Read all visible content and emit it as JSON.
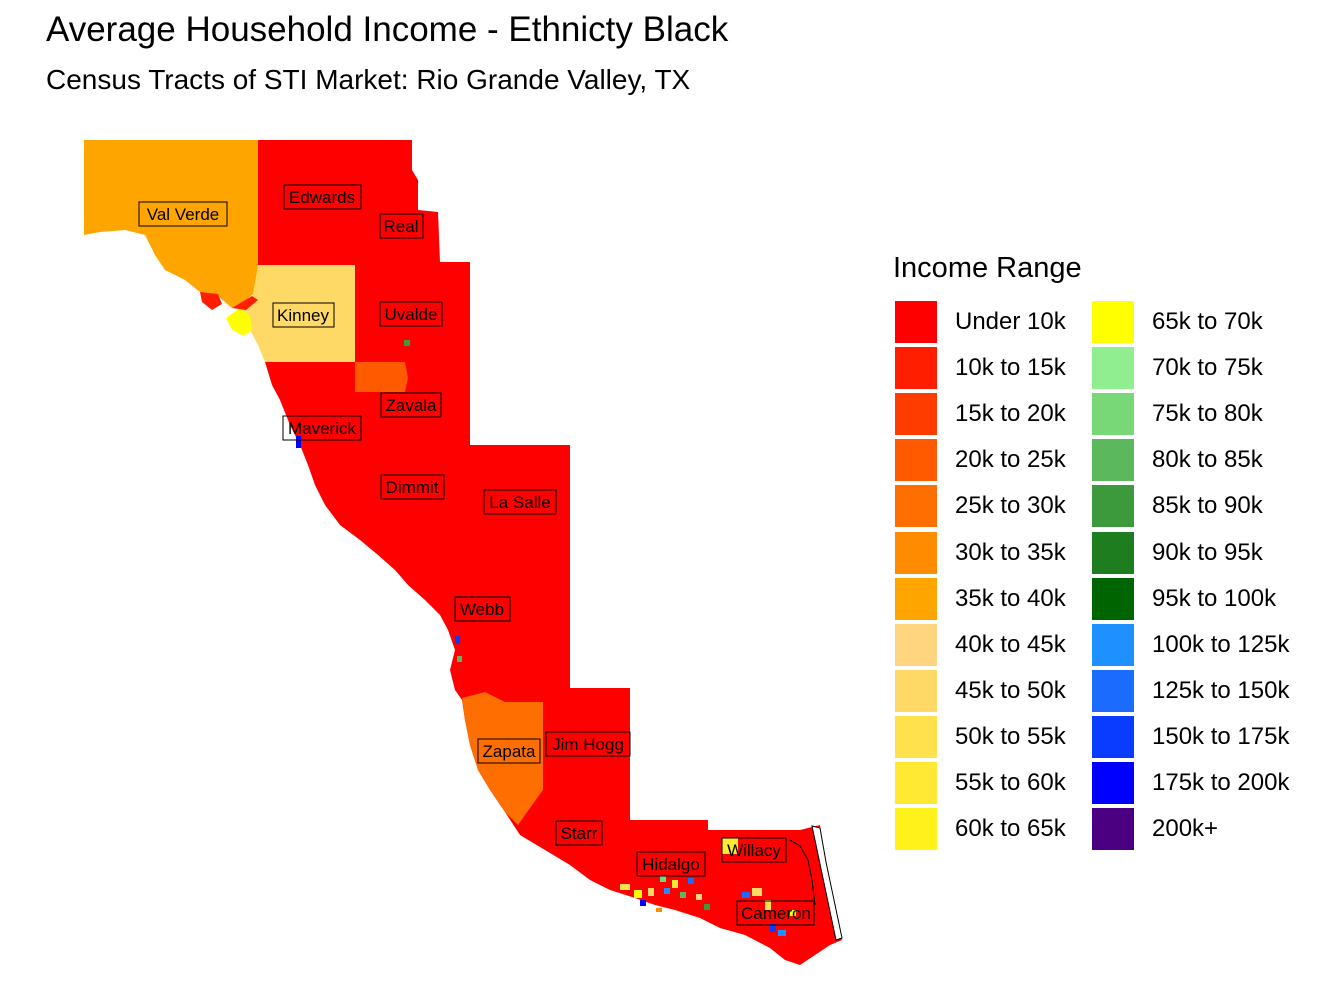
{
  "title": "Average Household Income - Ethnicty Black",
  "subtitle": "Census Tracts of STI Market: Rio Grande Valley, TX",
  "legend": {
    "title": "Income Range",
    "items": [
      {
        "label": "Under 10k",
        "color": "#FF0000"
      },
      {
        "label": "10k to 15k",
        "color": "#FF1E00"
      },
      {
        "label": "15k to 20k",
        "color": "#FF3C00"
      },
      {
        "label": "20k to 25k",
        "color": "#FF5A00"
      },
      {
        "label": "25k to 30k",
        "color": "#FF6E00"
      },
      {
        "label": "30k to 35k",
        "color": "#FF8C00"
      },
      {
        "label": "35k to 40k",
        "color": "#FFA500"
      },
      {
        "label": "40k to 45k",
        "color": "#FFD580"
      },
      {
        "label": "45k to 50k",
        "color": "#FFD966"
      },
      {
        "label": "50k to 55k",
        "color": "#FFE14D"
      },
      {
        "label": "55k to 60k",
        "color": "#FFE933"
      },
      {
        "label": "60k to 65k",
        "color": "#FFF21A"
      },
      {
        "label": "65k to 70k",
        "color": "#FFFF00"
      },
      {
        "label": "70k to 75k",
        "color": "#90EE90"
      },
      {
        "label": "75k to 80k",
        "color": "#78D878"
      },
      {
        "label": "80k to 85k",
        "color": "#5CB85C"
      },
      {
        "label": "85k to 90k",
        "color": "#3C9A3C"
      },
      {
        "label": "90k to 95k",
        "color": "#1E7D1E"
      },
      {
        "label": "95k to 100k",
        "color": "#006400"
      },
      {
        "label": "100k to 125k",
        "color": "#1E90FF"
      },
      {
        "label": "125k to 150k",
        "color": "#1C6BFF"
      },
      {
        "label": "150k to 175k",
        "color": "#0A3CFF"
      },
      {
        "label": "175k to 200k",
        "color": "#0000FF"
      },
      {
        "label": "200k+",
        "color": "#4B0082"
      }
    ]
  },
  "counties": [
    {
      "name": "Val Verde",
      "range": "35k to 40k"
    },
    {
      "name": "Edwards",
      "range": "Under 10k"
    },
    {
      "name": "Real",
      "range": "Under 10k"
    },
    {
      "name": "Kinney",
      "range": "45k to 50k"
    },
    {
      "name": "Uvalde",
      "range": "Under 10k"
    },
    {
      "name": "Zavala",
      "range": "Under 10k"
    },
    {
      "name": "Maverick",
      "range": "Under 10k"
    },
    {
      "name": "Dimmit",
      "range": "Under 10k"
    },
    {
      "name": "La Salle",
      "range": "Under 10k"
    },
    {
      "name": "Webb",
      "range": "Under 10k"
    },
    {
      "name": "Zapata",
      "range": "20k to 25k"
    },
    {
      "name": "Jim Hogg",
      "range": "Under 10k"
    },
    {
      "name": "Starr",
      "range": "Under 10k"
    },
    {
      "name": "Hidalgo",
      "range": "Under 10k"
    },
    {
      "name": "Willacy",
      "range": "Under 10k"
    },
    {
      "name": "Cameron",
      "range": "Under 10k"
    }
  ]
}
